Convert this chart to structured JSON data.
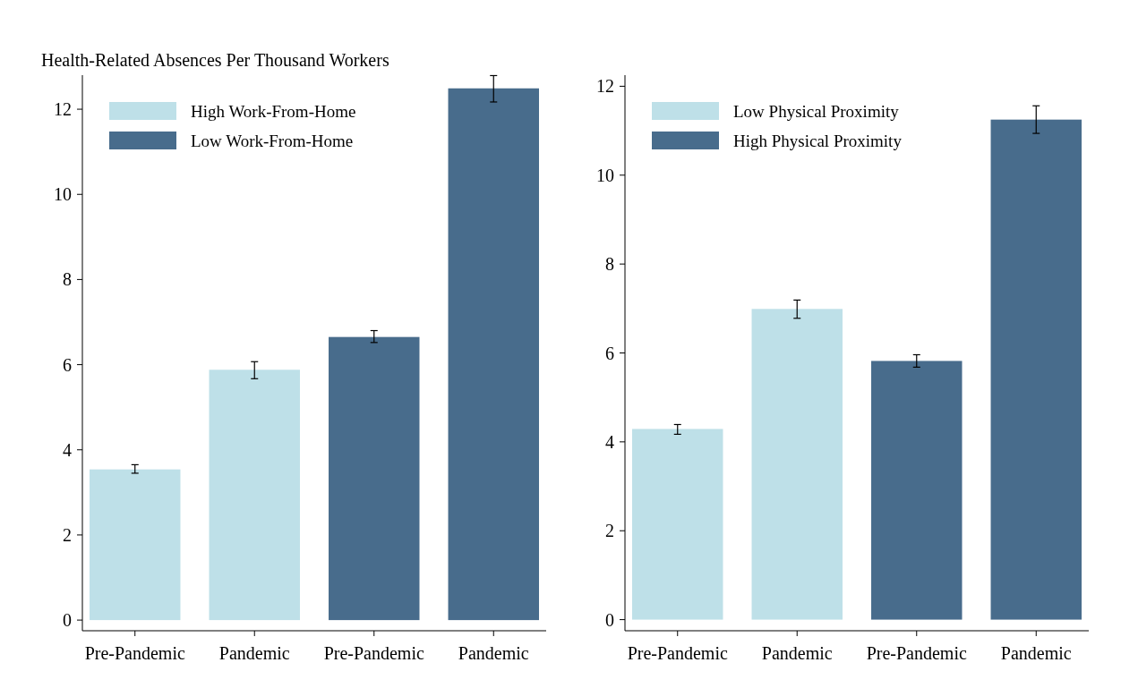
{
  "chart_data": [
    {
      "type": "bar",
      "title": "Health-Related Absences Per Thousand Workers",
      "categories": [
        "Pre-Pandemic",
        "Pandemic",
        "Pre-Pandemic",
        "Pandemic"
      ],
      "series": [
        {
          "name": "High Work-From-Home",
          "color": "#bee0e8",
          "values": [
            3.54,
            5.88,
            null,
            null
          ],
          "errors": [
            [
              3.45,
              3.65
            ],
            [
              5.67,
              6.07
            ],
            null,
            null
          ]
        },
        {
          "name": "Low Work-From-Home",
          "color": "#486c8c",
          "values": [
            null,
            null,
            6.65,
            12.49
          ],
          "errors": [
            null,
            null,
            [
              6.52,
              6.8
            ],
            [
              12.17,
              12.79
            ]
          ]
        }
      ],
      "ylim": [
        -0.25,
        12.8
      ],
      "yticks": [
        0,
        2,
        4,
        6,
        8,
        10,
        12
      ],
      "legend": "top left",
      "grid": false
    },
    {
      "type": "bar",
      "categories": [
        "Pre-Pandemic",
        "Pandemic",
        "Pre-Pandemic",
        "Pandemic"
      ],
      "series": [
        {
          "name": "Low Physical Proximity",
          "color": "#bee0e8",
          "values": [
            4.29,
            6.99,
            null,
            null
          ],
          "errors": [
            [
              4.17,
              4.39
            ],
            [
              6.78,
              7.19
            ],
            null,
            null
          ]
        },
        {
          "name": "High Physical Proximity",
          "color": "#486c8c",
          "values": [
            null,
            null,
            5.82,
            11.25
          ],
          "errors": [
            null,
            null,
            [
              5.68,
              5.96
            ],
            [
              10.94,
              11.56
            ]
          ]
        }
      ],
      "ylim": [
        -0.25,
        12.25
      ],
      "yticks": [
        0,
        2,
        4,
        6,
        8,
        10,
        12
      ],
      "legend": "top left",
      "grid": false
    }
  ]
}
